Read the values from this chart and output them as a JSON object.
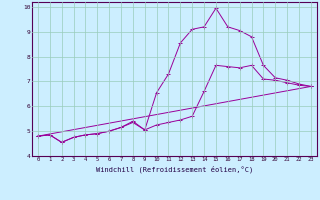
{
  "xlabel": "Windchill (Refroidissement éolien,°C)",
  "bg_color": "#cceeff",
  "line_color": "#990099",
  "grid_color": "#99ccbb",
  "xlim": [
    -0.5,
    23.5
  ],
  "ylim": [
    4,
    10.2
  ],
  "xticks": [
    0,
    1,
    2,
    3,
    4,
    5,
    6,
    7,
    8,
    9,
    10,
    11,
    12,
    13,
    14,
    15,
    16,
    17,
    18,
    19,
    20,
    21,
    22,
    23
  ],
  "yticks": [
    4,
    5,
    6,
    7,
    8,
    9,
    10
  ],
  "series": [
    {
      "x": [
        0,
        1,
        2,
        3,
        4,
        5,
        6,
        7,
        8,
        9,
        10,
        11,
        12,
        13,
        14,
        15,
        16,
        17,
        18,
        19,
        20,
        21,
        22,
        23
      ],
      "y": [
        4.8,
        4.85,
        4.55,
        4.75,
        4.85,
        4.9,
        5.0,
        5.15,
        5.4,
        5.05,
        6.55,
        7.3,
        8.55,
        9.1,
        9.2,
        9.95,
        9.2,
        9.05,
        8.8,
        7.65,
        7.15,
        7.05,
        6.9,
        6.8
      ]
    },
    {
      "x": [
        0,
        1,
        2,
        3,
        4,
        5,
        6,
        7,
        8,
        9,
        10,
        11,
        12,
        13,
        14,
        15,
        16,
        17,
        18,
        19,
        20,
        21,
        22,
        23
      ],
      "y": [
        4.8,
        4.85,
        4.55,
        4.75,
        4.85,
        4.9,
        5.0,
        5.15,
        5.35,
        5.05,
        5.25,
        5.35,
        5.45,
        5.6,
        6.6,
        7.65,
        7.6,
        7.55,
        7.65,
        7.1,
        7.05,
        6.95,
        6.85,
        6.8
      ]
    },
    {
      "x": [
        0,
        23
      ],
      "y": [
        4.8,
        6.8
      ]
    }
  ]
}
